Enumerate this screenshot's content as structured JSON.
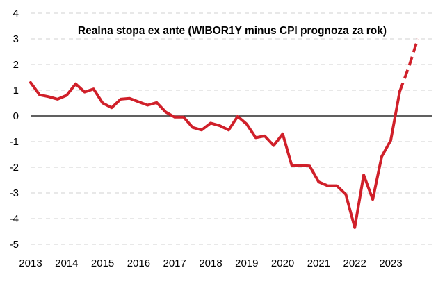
{
  "chart_data": {
    "type": "line",
    "title": "Realna stopa ex ante (WIBOR1Y minus CPI prognoza za rok)",
    "xlabel": "",
    "ylabel": "",
    "ylim": [
      -5,
      4
    ],
    "xlim": [
      2013,
      2023.9
    ],
    "y_ticks": [
      "4",
      "3",
      "2",
      "1",
      "0",
      "-1",
      "-2",
      "-3",
      "-4",
      "-5"
    ],
    "x_ticks": [
      "2013",
      "2014",
      "2015",
      "2016",
      "2017",
      "2018",
      "2019",
      "2020",
      "2021",
      "2022",
      "2023"
    ],
    "grid": "horizontal dashed",
    "line_color": "#d0202a",
    "series": [
      {
        "style": "solid",
        "x": [
          2013.0,
          2013.25,
          2013.5,
          2013.75,
          2014.0,
          2014.25,
          2014.5,
          2014.75,
          2015.0,
          2015.25,
          2015.5,
          2015.75,
          2016.0,
          2016.25,
          2016.5,
          2016.75,
          2017.0,
          2017.25,
          2017.5,
          2017.75,
          2018.0,
          2018.25,
          2018.5,
          2018.75,
          2019.0,
          2019.25,
          2019.5,
          2019.75,
          2020.0,
          2020.25,
          2020.5,
          2020.75,
          2021.0,
          2021.25,
          2021.5,
          2021.75,
          2022.0,
          2022.25,
          2022.5,
          2022.75,
          2023.0,
          2023.25
        ],
        "y": [
          1.3,
          0.82,
          0.75,
          0.65,
          0.8,
          1.25,
          0.93,
          1.05,
          0.5,
          0.32,
          0.65,
          0.68,
          0.55,
          0.42,
          0.52,
          0.15,
          -0.05,
          -0.05,
          -0.45,
          -0.55,
          -0.28,
          -0.38,
          -0.55,
          -0.02,
          -0.32,
          -0.85,
          -0.78,
          -1.15,
          -0.7,
          -1.92,
          -1.93,
          -1.95,
          -2.57,
          -2.72,
          -2.72,
          -3.05,
          -4.35,
          -2.3,
          -3.25,
          -1.58,
          -0.95,
          0.95
        ]
      },
      {
        "style": "dashed",
        "x": [
          2023.25,
          2023.5,
          2023.75
        ],
        "y": [
          0.95,
          1.9,
          3.0
        ]
      }
    ]
  }
}
